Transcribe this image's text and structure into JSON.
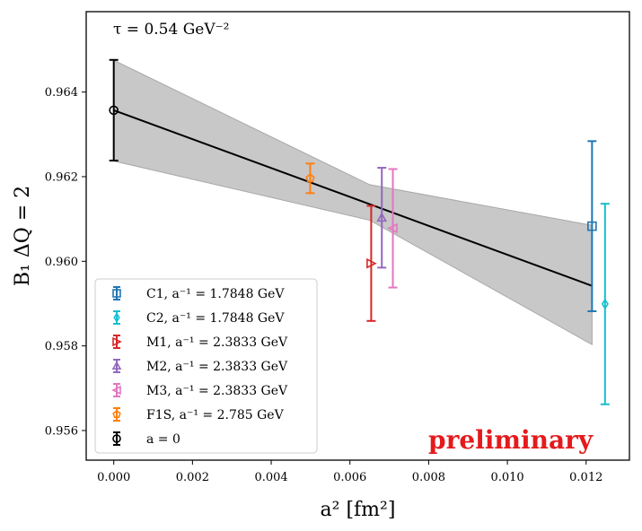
{
  "chart_data": {
    "type": "scatter",
    "title": "",
    "annotation": "τ = 0.54 GeV⁻²",
    "watermark": "preliminary",
    "watermark_color": "#e41a1c",
    "xlabel": "a² [fm²]",
    "ylabel": "B₁ ΔQ = 2",
    "xlim": [
      -0.0007,
      0.0131
    ],
    "ylim": [
      0.9553,
      0.9659
    ],
    "xticks": [
      0.0,
      0.002,
      0.004,
      0.006,
      0.008,
      0.01,
      0.012
    ],
    "xtick_labels": [
      "0.000",
      "0.002",
      "0.004",
      "0.006",
      "0.008",
      "0.010",
      "0.012"
    ],
    "yticks": [
      0.956,
      0.958,
      0.96,
      0.962,
      0.964
    ],
    "ytick_labels": [
      "0.956",
      "0.958",
      "0.960",
      "0.962",
      "0.964"
    ],
    "legend_position": "lower-left",
    "fit": {
      "x": [
        0.0,
        0.01215
      ],
      "y": [
        0.96357,
        0.95942
      ],
      "band_upper": [
        0.96475,
        0.96085
      ],
      "band_lower": [
        0.96237,
        0.95803
      ],
      "band_x_mid": 0.0065,
      "band_mid_upper": 0.96181,
      "band_mid_lower": 0.96097,
      "line_color": "#000000",
      "band_color": "#c8c8c8"
    },
    "series": [
      {
        "name": "C1",
        "label": "C1, a⁻¹ = 1.7848 GeV",
        "marker": "square",
        "color": "#1f77b4",
        "x": 0.01215,
        "y": 0.96083,
        "yerr": 0.00201
      },
      {
        "name": "C2",
        "label": "C2, a⁻¹ = 1.7848 GeV",
        "marker": "diamond",
        "color": "#17becf",
        "x": 0.01248,
        "y": 0.95899,
        "yerr": 0.00237
      },
      {
        "name": "M1",
        "label": "M1, a⁻¹ = 2.3833 GeV",
        "marker": "triangle-right",
        "color": "#d62728",
        "x": 0.00654,
        "y": 0.95995,
        "yerr": 0.00136
      },
      {
        "name": "M2",
        "label": "M2, a⁻¹ = 2.3833 GeV",
        "marker": "triangle-up",
        "color": "#9467bd",
        "x": 0.00681,
        "y": 0.96103,
        "yerr": 0.00118
      },
      {
        "name": "M3",
        "label": "M3, a⁻¹ = 2.3833 GeV",
        "marker": "triangle-left",
        "color": "#e377c2",
        "x": 0.00709,
        "y": 0.96078,
        "yerr": 0.0014
      },
      {
        "name": "F1S",
        "label": "F1S, a⁻¹ = 2.785 GeV",
        "marker": "pentagon",
        "color": "#ff7f0e",
        "x": 0.00499,
        "y": 0.96196,
        "yerr": 0.00035
      },
      {
        "name": "a=0",
        "label": "a = 0",
        "marker": "circle",
        "color": "#000000",
        "x": 0.0,
        "y": 0.96357,
        "yerr": 0.00119
      }
    ]
  }
}
